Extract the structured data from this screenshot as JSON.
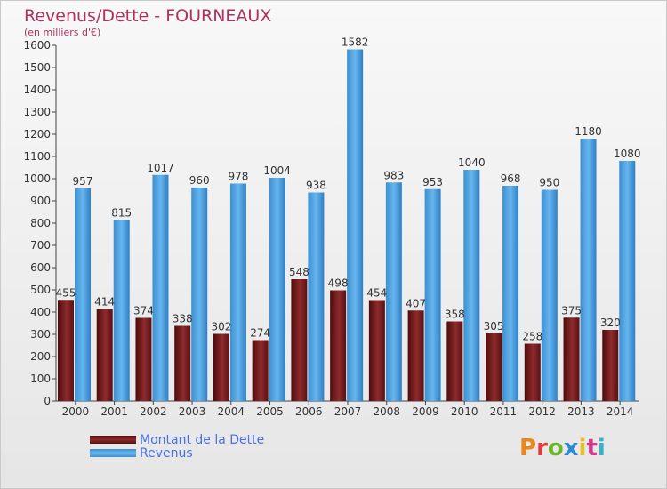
{
  "header": {
    "title": "Revenus/Dette - FOURNEAUX",
    "subtitle": "(en milliers d'€)"
  },
  "legend": {
    "debt_label": "Montant de la Dette",
    "revenue_label": "Revenus"
  },
  "logo": {
    "text": "Proxiti",
    "letter_colors": [
      "#e8891c",
      "#e23a3a",
      "#6fb52c",
      "#2a8ad6",
      "#e8c21c",
      "#d43a8a",
      "#3ab0c8"
    ]
  },
  "colors": {
    "debt": "#7a1c1e",
    "revenue": "#4aa3e6",
    "title": "#b03060",
    "legend_text": "#4a6fe0"
  },
  "chart_data": {
    "type": "bar",
    "title": "Revenus/Dette - FOURNEAUX",
    "subtitle": "(en milliers d'€)",
    "xlabel": "",
    "ylabel": "",
    "ylim": [
      0,
      1600
    ],
    "yticks": [
      0,
      100,
      200,
      300,
      400,
      500,
      600,
      700,
      800,
      900,
      1000,
      1100,
      1200,
      1300,
      1400,
      1500,
      1600
    ],
    "grid": false,
    "legend_position": "bottom-left",
    "categories": [
      "2000",
      "2001",
      "2002",
      "2003",
      "2004",
      "2005",
      "2006",
      "2007",
      "2008",
      "2009",
      "2010",
      "2011",
      "2012",
      "2013",
      "2014"
    ],
    "series": [
      {
        "name": "Montant de la Dette",
        "values": [
          455,
          414,
          374,
          338,
          302,
          274,
          548,
          498,
          454,
          407,
          358,
          305,
          258,
          375,
          320
        ]
      },
      {
        "name": "Revenus",
        "values": [
          957,
          815,
          1017,
          960,
          978,
          1004,
          938,
          1582,
          983,
          953,
          1040,
          968,
          950,
          1180,
          1080
        ]
      }
    ]
  }
}
